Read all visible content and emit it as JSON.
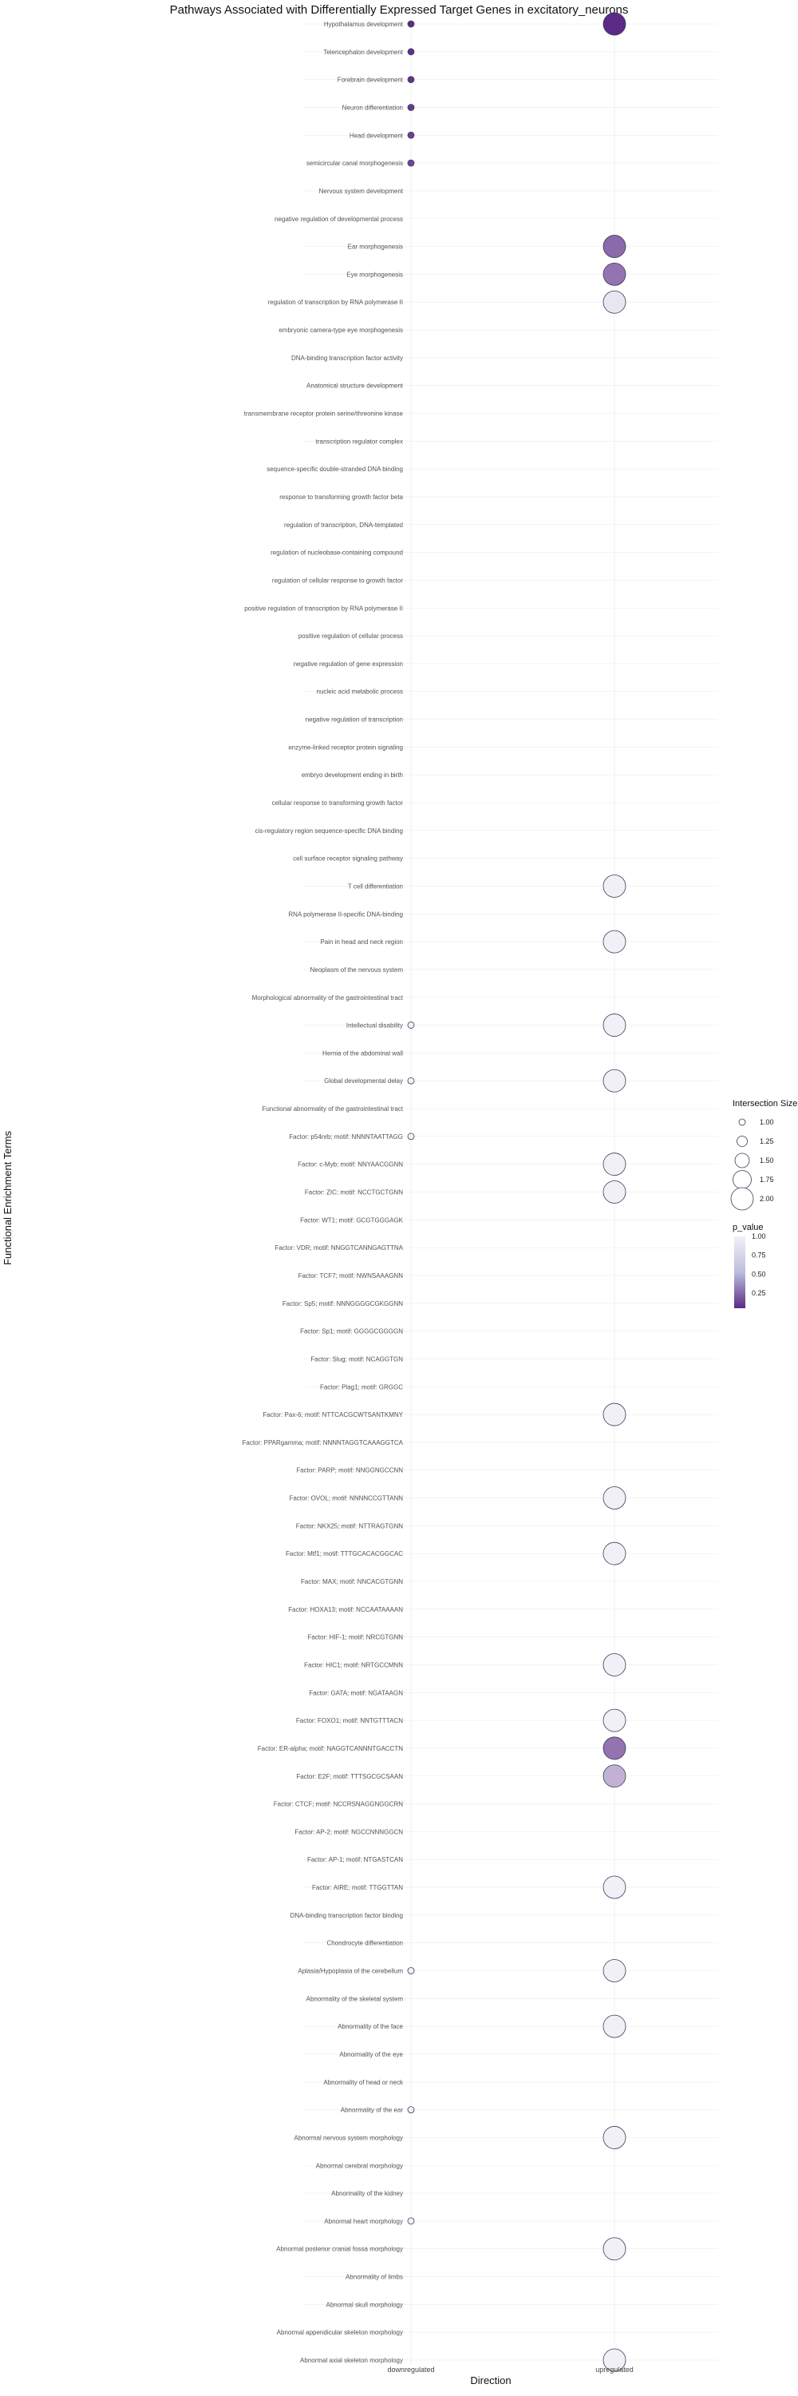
{
  "chart_data": {
    "type": "scatter",
    "title": "Pathways Associated with Differentially Expressed Target Genes in excitatory_neurons",
    "xlabel": "Direction",
    "ylabel": "Functional Enrichment Terms",
    "x_categories": [
      "downregulated",
      "upregulated"
    ],
    "size_legend": {
      "title": "Intersection Size",
      "ticks": [
        "1.00",
        "1.25",
        "1.50",
        "1.75",
        "2.00"
      ],
      "range": [
        1,
        2
      ]
    },
    "color_legend": {
      "title": "p_value",
      "ticks": [
        "1.00",
        "0.75",
        "0.50",
        "0.25"
      ],
      "range": [
        0.05,
        1
      ],
      "low_color": "#5b2a86",
      "high_color": "#f2f0f7"
    },
    "terms": [
      "Hypothalamus development",
      "Telencephalon development",
      "Forebrain development",
      "Neuron differentiation",
      "Head development",
      "semicircular canal morphogenesis",
      "Nervous system development",
      "negative regulation of developmental process",
      "Ear morphogenesis",
      "Eye morphogenesis",
      "regulation of transcription by RNA polymerase II",
      "embryonic camera-type eye morphogenesis",
      "DNA-binding transcription factor activity",
      "Anatomical structure development",
      "transmembrane receptor protein serine/threonine kinase",
      "transcription regulator complex",
      "sequence-specific double-stranded DNA binding",
      "response to transforming growth factor beta",
      "regulation of transcription, DNA-templated",
      "regulation of nucleobase-containing compound",
      "regulation of cellular response to growth factor",
      "positive regulation of transcription by RNA polymerase II",
      "positive regulation of cellular process",
      "negative regulation of gene expression",
      "nucleic acid metabolic process",
      "negative regulation of transcription",
      "enzyme-linked receptor protein signaling",
      "embryo development ending in birth",
      "cellular response to transforming growth factor",
      "cis-regulatory region sequence-specific DNA binding",
      "cell surface receptor signaling pathway",
      "T cell differentiation",
      "RNA polymerase II-specific DNA-binding",
      "Pain in head and neck region",
      "Neoplasm of the nervous system",
      "Morphological abnormality of the gastrointestinal tract",
      "Intellectual disability",
      "Hernia of the abdominal wall",
      "Global developmental delay",
      "Functional abnormality of the gastrointestinal tract",
      "Factor: p54nrb; motif: NNNNTAATTAGG",
      "Factor: c-Myb; motif: NNYAACGGNN",
      "Factor: ZIC; motif: NCCTGCTGNN",
      "Factor: WT1; motif: GCGTGGGAGK",
      "Factor: VDR; motif: NNGGTCANNGAGTTNA",
      "Factor: TCF7; motif: NWNSAAAGNN",
      "Factor: Sp5; motif: NNNGGGGCGKGGNN",
      "Factor: Sp1; motif: GGGGCGGGGN",
      "Factor: Slug; motif: NCAGGTGN",
      "Factor: Plag1; motif: GRGGC",
      "Factor: Pax-6; motif: NTTCACGCWTSANTKMNY",
      "Factor: PPARgamma; motif: NNNNTAGGTCAAAGGTCA",
      "Factor: PARP; motif: NNGGNGCCNN",
      "Factor: OVOL; motif: NNNNCCGTTANN",
      "Factor: NKX25; motif: NTTRAGTGNN",
      "Factor: Mtf1; motif: TTTGCACACGGCAC",
      "Factor: MAX; motif: NNCACGTGNN",
      "Factor: HOXA13; motif: NCCAATAAAAN",
      "Factor: HIF-1; motif: NRCGTGNN",
      "Factor: HIC1; motif: NRTGCCMNN",
      "Factor: GATA; motif: NGATAAGN",
      "Factor: FOXO1; motif: NNTGTTTACN",
      "Factor: ER-alpha; motif: NAGGTCANNNTGACCTN",
      "Factor: E2F; motif: TTTSGCGCSAAN",
      "Factor: CTCF; motif: NCCRSNAGGNGGCRN",
      "Factor: AP-2; motif: NGCCNNNGGCN",
      "Factor: AP-1; motif: NTGASTCAN",
      "Factor: AIRE; motif: TTGGTTAN",
      "DNA-binding transcription factor binding",
      "Chondrocyte differentiation",
      "Aplasia/Hypoplasia of the cerebellum",
      "Abnormality of the skeletal system",
      "Abnormality of the face",
      "Abnormality of the eye",
      "Abnormality of head or neck",
      "Abnormality of the ear",
      "Abnormal nervous system morphology",
      "Abnormal cerebral morphology",
      "Abnormality of the kidney",
      "Abnormal heart morphology",
      "Abnormal posterior cranial fossa morphology",
      "Abnormality of limbs",
      "Abnormal skull morphology",
      "Abnormal appendicular skeleton morphology",
      "Abnormal axial skeleton morphology"
    ],
    "points": [
      {
        "term": "Hypothalamus development",
        "direction": "downregulated",
        "size": 1,
        "p_value": 0.06
      },
      {
        "term": "Telencephalon development",
        "direction": "downregulated",
        "size": 1,
        "p_value": 0.08
      },
      {
        "term": "Forebrain development",
        "direction": "downregulated",
        "size": 1,
        "p_value": 0.1
      },
      {
        "term": "Neuron differentiation",
        "direction": "downregulated",
        "size": 1,
        "p_value": 0.12
      },
      {
        "term": "Head development",
        "direction": "downregulated",
        "size": 1,
        "p_value": 0.15
      },
      {
        "term": "semicircular canal morphogenesis",
        "direction": "downregulated",
        "size": 1,
        "p_value": 0.18
      },
      {
        "term": "Hypothalamus development",
        "direction": "upregulated",
        "size": 2,
        "p_value": 0.05
      },
      {
        "term": "Ear morphogenesis",
        "direction": "upregulated",
        "size": 2,
        "p_value": 0.35
      },
      {
        "term": "Eye morphogenesis",
        "direction": "upregulated",
        "size": 2,
        "p_value": 0.4
      },
      {
        "term": "regulation of transcription by RNA polymerase II",
        "direction": "upregulated",
        "size": 2,
        "p_value": 0.95
      },
      {
        "term": "T cell differentiation",
        "direction": "upregulated",
        "size": 2,
        "p_value": 1.0
      },
      {
        "term": "Pain in head and neck region",
        "direction": "upregulated",
        "size": 2,
        "p_value": 1.0
      },
      {
        "term": "Intellectual disability",
        "direction": "upregulated",
        "size": 2,
        "p_value": 1.0
      },
      {
        "term": "Global developmental delay",
        "direction": "upregulated",
        "size": 2,
        "p_value": 1.0
      },
      {
        "term": "Factor: c-Myb; motif: NNYAACGGNN",
        "direction": "upregulated",
        "size": 2,
        "p_value": 1.0
      },
      {
        "term": "Factor: ZIC; motif: NCCTGCTGNN",
        "direction": "upregulated",
        "size": 2,
        "p_value": 1.0
      },
      {
        "term": "Factor: Pax-6; motif: NTTCACGCWTSANTKMNY",
        "direction": "upregulated",
        "size": 2,
        "p_value": 1.0
      },
      {
        "term": "Factor: OVOL; motif: NNNNCCGTTANN",
        "direction": "upregulated",
        "size": 2,
        "p_value": 1.0
      },
      {
        "term": "Factor: Mtf1; motif: TTTGCACACGGCAC",
        "direction": "upregulated",
        "size": 2,
        "p_value": 1.0
      },
      {
        "term": "Factor: HIC1; motif: NRTGCCMNN",
        "direction": "upregulated",
        "size": 2,
        "p_value": 1.0
      },
      {
        "term": "Factor: FOXO1; motif: NNTGTTTACN",
        "direction": "upregulated",
        "size": 2,
        "p_value": 1.0
      },
      {
        "term": "Factor: ER-alpha; motif: NAGGTCANNNTGACCTN",
        "direction": "upregulated",
        "size": 2,
        "p_value": 0.4
      },
      {
        "term": "Factor: E2F; motif: TTTSGCGCSAAN",
        "direction": "upregulated",
        "size": 2,
        "p_value": 0.7
      },
      {
        "term": "Factor: AIRE; motif: TTGGTTAN",
        "direction": "upregulated",
        "size": 2,
        "p_value": 1.0
      },
      {
        "term": "Aplasia/Hypoplasia of the cerebellum",
        "direction": "upregulated",
        "size": 2,
        "p_value": 1.0
      },
      {
        "term": "Abnormality of the face",
        "direction": "upregulated",
        "size": 2,
        "p_value": 1.0
      },
      {
        "term": "Abnormal nervous system morphology",
        "direction": "upregulated",
        "size": 2,
        "p_value": 1.0
      },
      {
        "term": "Abnormal posterior cranial fossa morphology",
        "direction": "upregulated",
        "size": 2,
        "p_value": 1.0
      },
      {
        "term": "Abnormal axial skeleton morphology",
        "direction": "upregulated",
        "size": 2,
        "p_value": 1.0
      },
      {
        "term": "Intellectual disability",
        "direction": "downregulated",
        "size": 1,
        "p_value": 1.0
      },
      {
        "term": "Global developmental delay",
        "direction": "downregulated",
        "size": 1,
        "p_value": 1.0
      },
      {
        "term": "Factor: p54nrb; motif: NNNNTAATTAGG",
        "direction": "downregulated",
        "size": 1,
        "p_value": 1.0
      },
      {
        "term": "Aplasia/Hypoplasia of the cerebellum",
        "direction": "downregulated",
        "size": 1,
        "p_value": 1.0
      },
      {
        "term": "Abnormality of the ear",
        "direction": "downregulated",
        "size": 1,
        "p_value": 1.0
      },
      {
        "term": "Abnormal heart morphology",
        "direction": "downregulated",
        "size": 1,
        "p_value": 1.0
      }
    ]
  }
}
